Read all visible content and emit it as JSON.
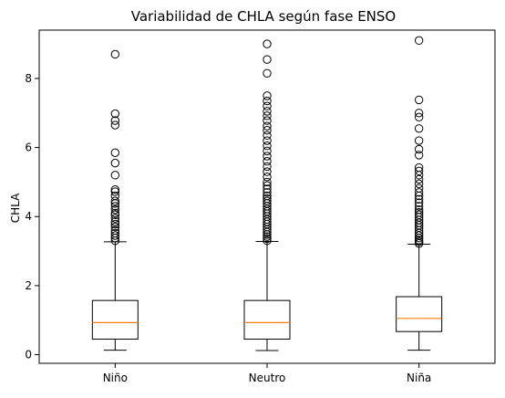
{
  "chart_data": {
    "type": "box",
    "title": "Variabilidad de CHLA según fase ENSO",
    "xlabel": "",
    "ylabel": "CHLA",
    "categories": [
      "Niño",
      "Neutro",
      "Niña"
    ],
    "ylim": [
      -0.25,
      9.4
    ],
    "yticks": [
      0,
      2,
      4,
      6,
      8
    ],
    "grid": false,
    "colors": {
      "box": "#000000",
      "median": "#ff7f0e",
      "flier": "#000000"
    },
    "boxes": [
      {
        "name": "Niño",
        "whisker_low": 0.13,
        "q1": 0.45,
        "median": 0.93,
        "q3": 1.57,
        "whisker_high": 3.27,
        "fliers": [
          3.3,
          3.38,
          3.45,
          3.52,
          3.6,
          3.7,
          3.78,
          3.85,
          3.95,
          4.05,
          4.1,
          4.2,
          4.3,
          4.38,
          4.45,
          4.6,
          4.72,
          4.78,
          5.2,
          5.55,
          5.85,
          6.65,
          6.78,
          6.98,
          8.7
        ]
      },
      {
        "name": "Neutro",
        "whisker_low": 0.12,
        "q1": 0.45,
        "median": 0.93,
        "q3": 1.57,
        "whisker_high": 3.28,
        "fliers": [
          3.3,
          3.36,
          3.42,
          3.48,
          3.55,
          3.62,
          3.7,
          3.78,
          3.85,
          3.92,
          4.0,
          4.08,
          4.15,
          4.22,
          4.3,
          4.38,
          4.45,
          4.52,
          4.6,
          4.7,
          4.8,
          4.9,
          5.0,
          5.15,
          5.3,
          5.45,
          5.6,
          5.75,
          5.9,
          6.05,
          6.2,
          6.35,
          6.5,
          6.62,
          6.78,
          6.92,
          7.05,
          7.2,
          7.35,
          7.5,
          8.15,
          8.55,
          9.0
        ]
      },
      {
        "name": "Niña",
        "whisker_low": 0.13,
        "q1": 0.67,
        "median": 1.05,
        "q3": 1.68,
        "whisker_high": 3.2,
        "fliers": [
          3.22,
          3.27,
          3.32,
          3.38,
          3.45,
          3.52,
          3.6,
          3.68,
          3.75,
          3.82,
          3.9,
          3.98,
          4.05,
          4.12,
          4.2,
          4.3,
          4.4,
          4.5,
          4.6,
          4.7,
          4.82,
          4.95,
          5.08,
          5.2,
          5.32,
          5.42,
          5.78,
          5.95,
          6.2,
          6.55,
          6.88,
          7.0,
          7.38,
          9.1
        ]
      }
    ]
  }
}
